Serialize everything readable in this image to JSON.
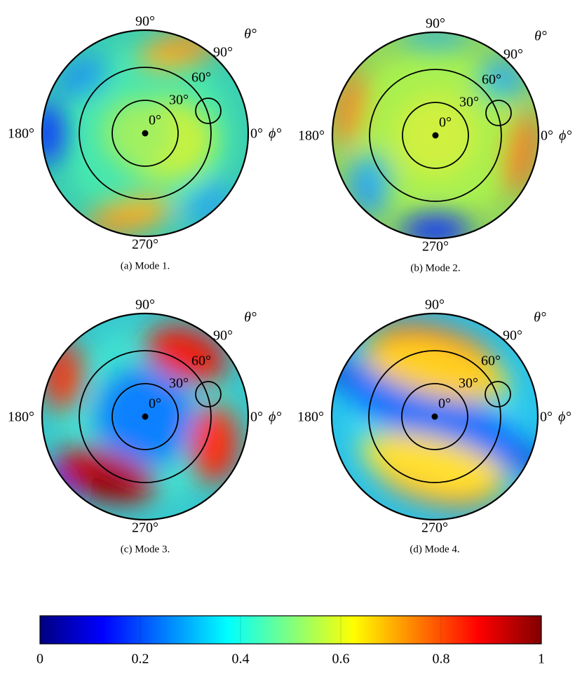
{
  "panels": [
    {
      "caption": "(a) Mode 1.",
      "labels": {
        "top": "90°",
        "left": "180°",
        "bottom": "270°",
        "right": "0°",
        "phi": "ϕ°",
        "theta": "θ°",
        "r90": "90°",
        "r60": "60°",
        "r30": "30°",
        "r0": "0°"
      }
    },
    {
      "caption": "(b) Mode 2.",
      "labels": {
        "top": "90°",
        "left": "180°",
        "bottom": "270°",
        "right": "0°",
        "phi": "ϕ°",
        "theta": "θ°",
        "r90": "90°",
        "r60": "60°",
        "r30": "30°",
        "r0": "0°"
      }
    },
    {
      "caption": "(c) Mode 3.",
      "labels": {
        "top": "90°",
        "left": "180°",
        "bottom": "270°",
        "right": "0°",
        "phi": "ϕ°",
        "theta": "θ°",
        "r90": "90°",
        "r60": "60°",
        "r30": "30°",
        "r0": "0°"
      }
    },
    {
      "caption": "(d) Mode 4.",
      "labels": {
        "top": "90°",
        "left": "180°",
        "bottom": "270°",
        "right": "0°",
        "phi": "ϕ°",
        "theta": "θ°",
        "r90": "90°",
        "r60": "60°",
        "r30": "30°",
        "r0": "0°"
      }
    }
  ],
  "colorbar": {
    "lim": [
      0,
      1
    ],
    "ticks": [
      0,
      0.2,
      0.4,
      0.6,
      0.8,
      1
    ],
    "colormap": "jet"
  }
}
